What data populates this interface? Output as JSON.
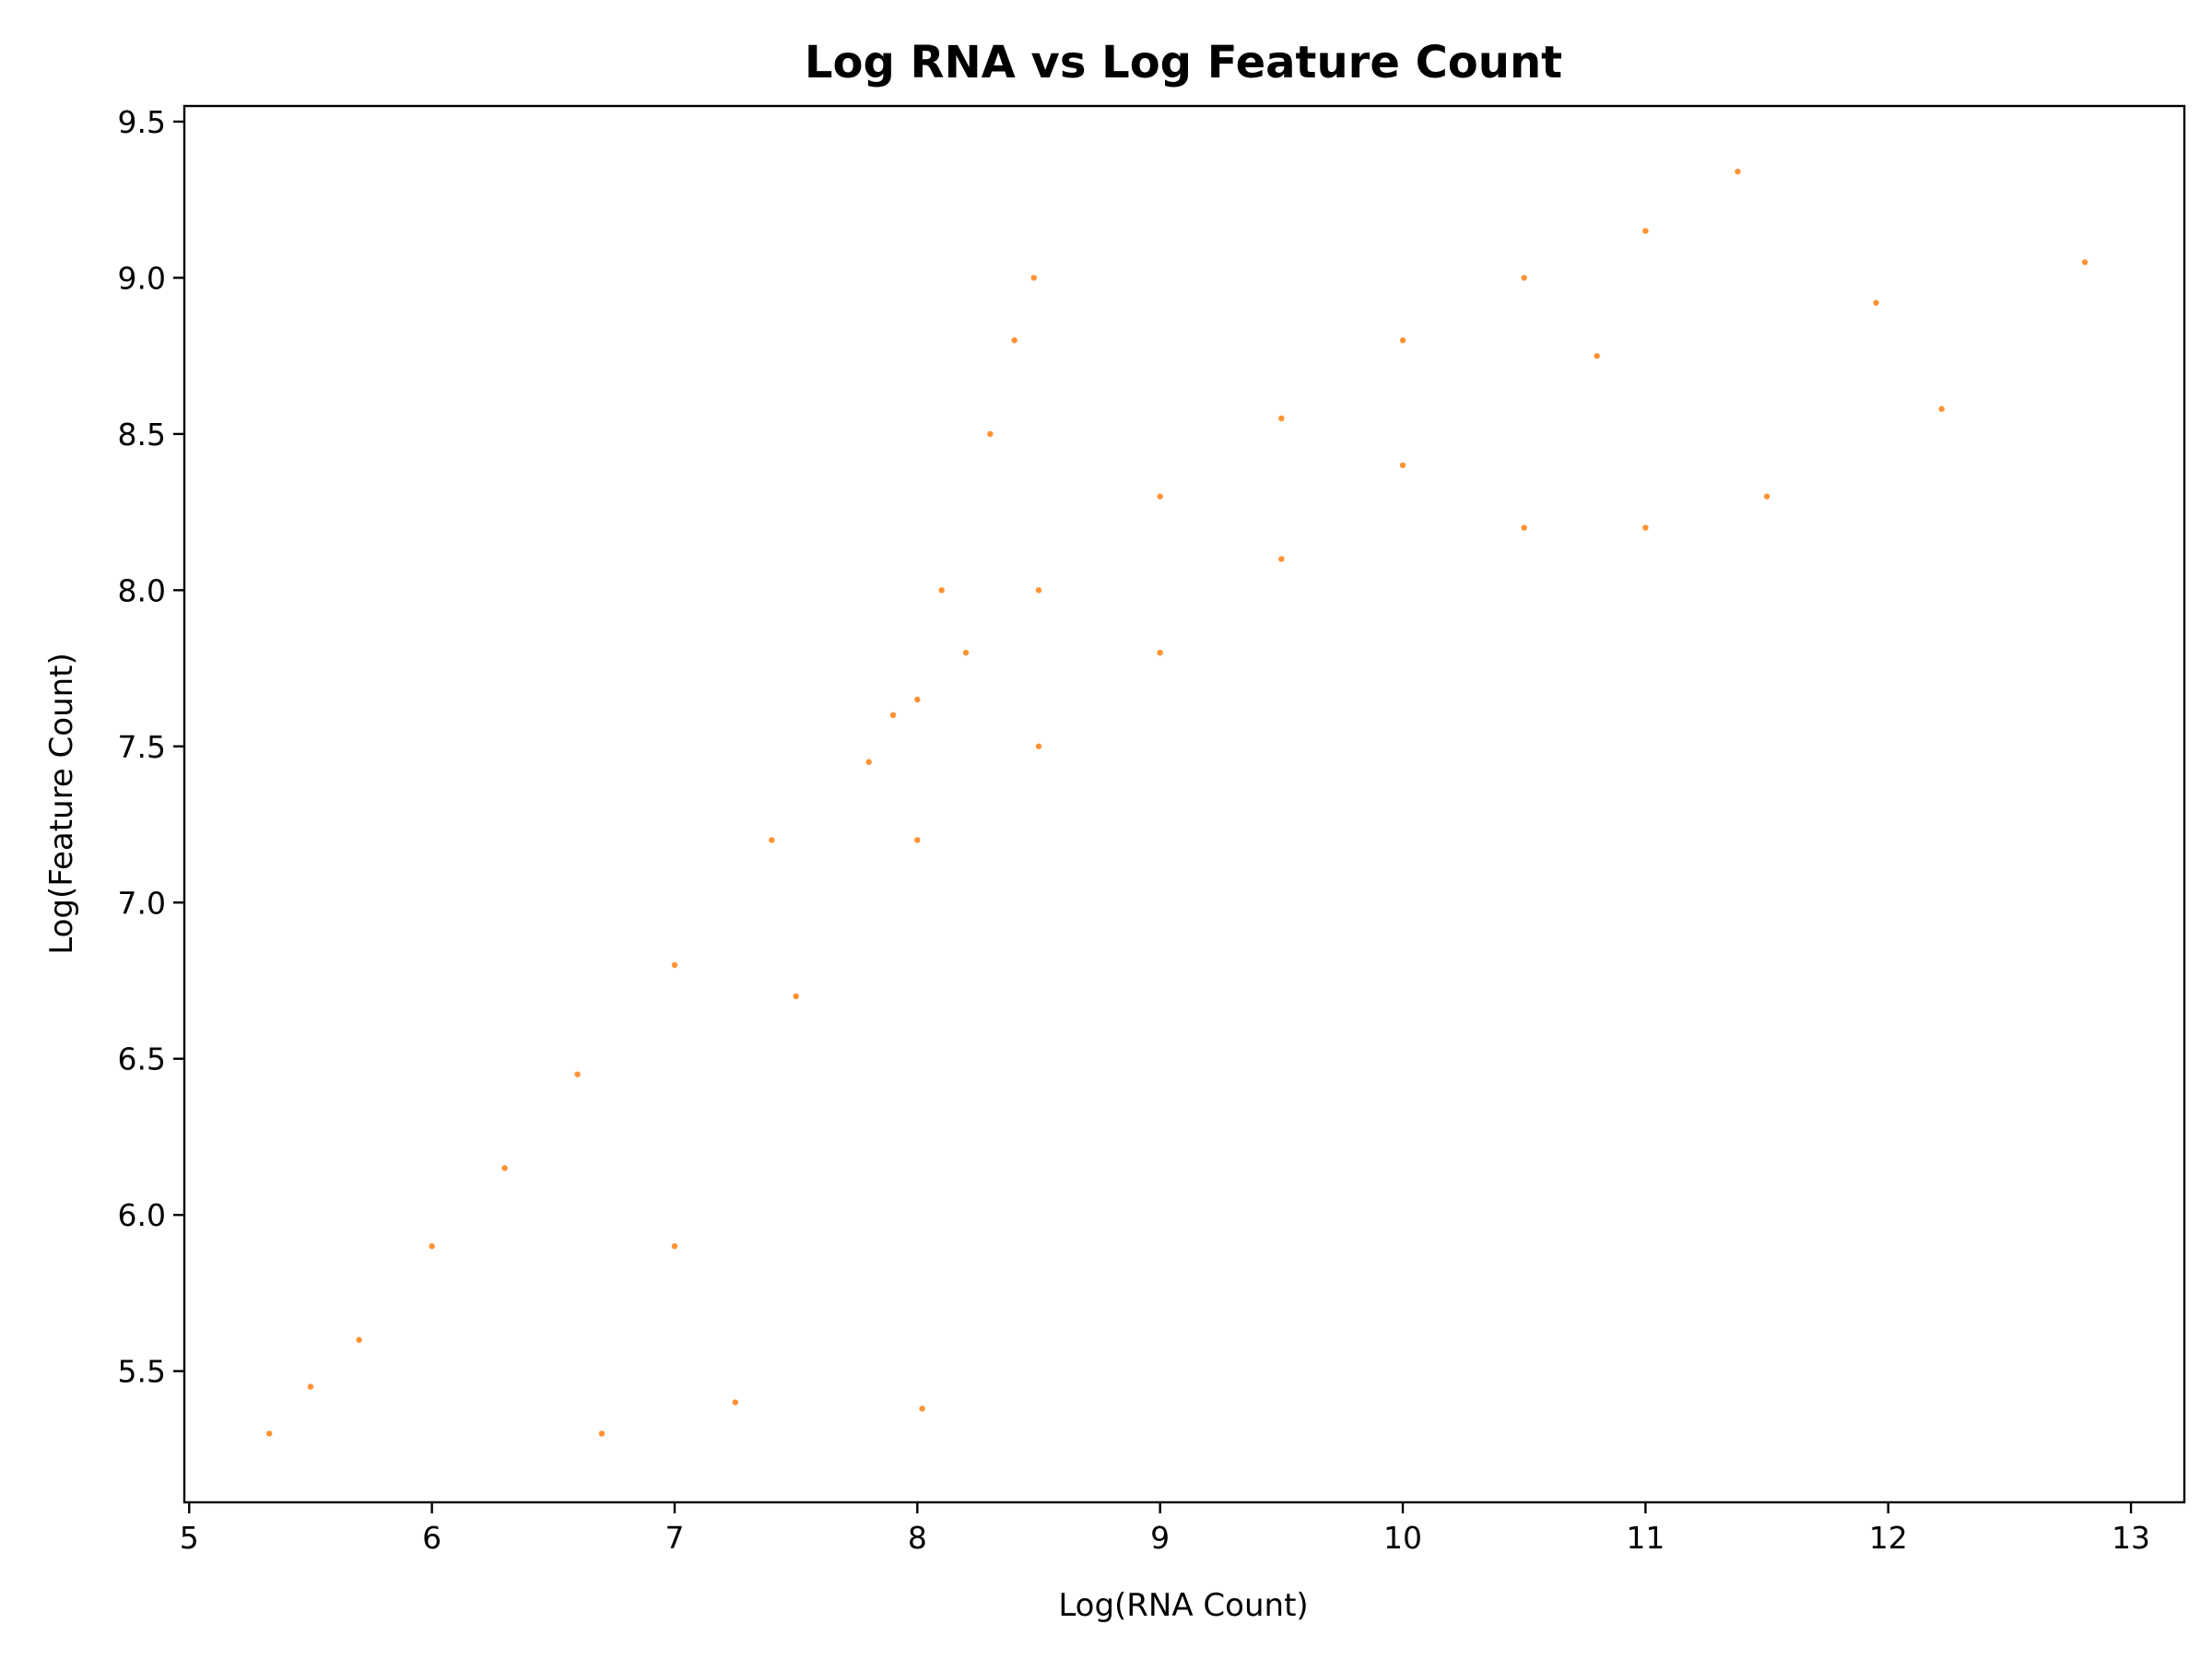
{
  "chart_data": {
    "type": "scatter",
    "title": "Log RNA vs Log Feature Count",
    "xlabel": "Log(RNA Count)",
    "ylabel": "Log(Feature Count)",
    "xlim": [
      4.98,
      13.22
    ],
    "ylim": [
      5.08,
      9.55
    ],
    "xticks": [
      5,
      6,
      7,
      8,
      9,
      10,
      11,
      12,
      13
    ],
    "yticks": [
      5.5,
      6.0,
      6.5,
      7.0,
      7.5,
      8.0,
      8.5,
      9.0,
      9.5
    ],
    "xtick_labels": [
      "5",
      "6",
      "7",
      "8",
      "9",
      "10",
      "11",
      "12",
      "13"
    ],
    "ytick_labels": [
      "5.5",
      "6.0",
      "6.5",
      "7.0",
      "7.5",
      "8.0",
      "8.5",
      "9.0",
      "9.5"
    ],
    "grid": false,
    "legend": "none",
    "marker_color": "#ff7f0e",
    "series": [
      {
        "values": [
          {
            "x": 5.33,
            "y": 5.3
          },
          {
            "x": 5.5,
            "y": 5.45
          },
          {
            "x": 5.7,
            "y": 5.6
          },
          {
            "x": 6.0,
            "y": 5.9
          },
          {
            "x": 6.3,
            "y": 6.15
          },
          {
            "x": 6.6,
            "y": 6.45
          },
          {
            "x": 7.0,
            "y": 6.8
          },
          {
            "x": 7.4,
            "y": 7.2
          },
          {
            "x": 7.8,
            "y": 7.45
          },
          {
            "x": 8.0,
            "y": 7.65
          },
          {
            "x": 8.2,
            "y": 7.8
          },
          {
            "x": 8.5,
            "y": 8.0
          },
          {
            "x": 9.0,
            "y": 8.3
          },
          {
            "x": 9.5,
            "y": 8.55
          },
          {
            "x": 10.0,
            "y": 8.8
          },
          {
            "x": 10.5,
            "y": 9.0
          },
          {
            "x": 11.0,
            "y": 9.15
          },
          {
            "x": 11.38,
            "y": 9.34
          },
          {
            "x": 7.9,
            "y": 7.6
          },
          {
            "x": 8.1,
            "y": 8.0
          },
          {
            "x": 8.3,
            "y": 8.5
          },
          {
            "x": 8.4,
            "y": 8.8
          },
          {
            "x": 8.48,
            "y": 9.0
          },
          {
            "x": 6.7,
            "y": 5.3
          },
          {
            "x": 7.0,
            "y": 5.9
          },
          {
            "x": 7.5,
            "y": 6.7
          },
          {
            "x": 8.0,
            "y": 7.2
          },
          {
            "x": 8.5,
            "y": 7.5
          },
          {
            "x": 9.0,
            "y": 7.8
          },
          {
            "x": 9.5,
            "y": 8.1
          },
          {
            "x": 10.0,
            "y": 8.4
          },
          {
            "x": 10.8,
            "y": 8.75
          },
          {
            "x": 10.5,
            "y": 8.2
          },
          {
            "x": 11.0,
            "y": 8.2
          },
          {
            "x": 11.5,
            "y": 8.3
          },
          {
            "x": 11.95,
            "y": 8.92
          },
          {
            "x": 12.22,
            "y": 8.58
          },
          {
            "x": 12.81,
            "y": 9.05
          },
          {
            "x": 8.02,
            "y": 5.38
          },
          {
            "x": 7.25,
            "y": 5.4
          }
        ]
      }
    ]
  }
}
